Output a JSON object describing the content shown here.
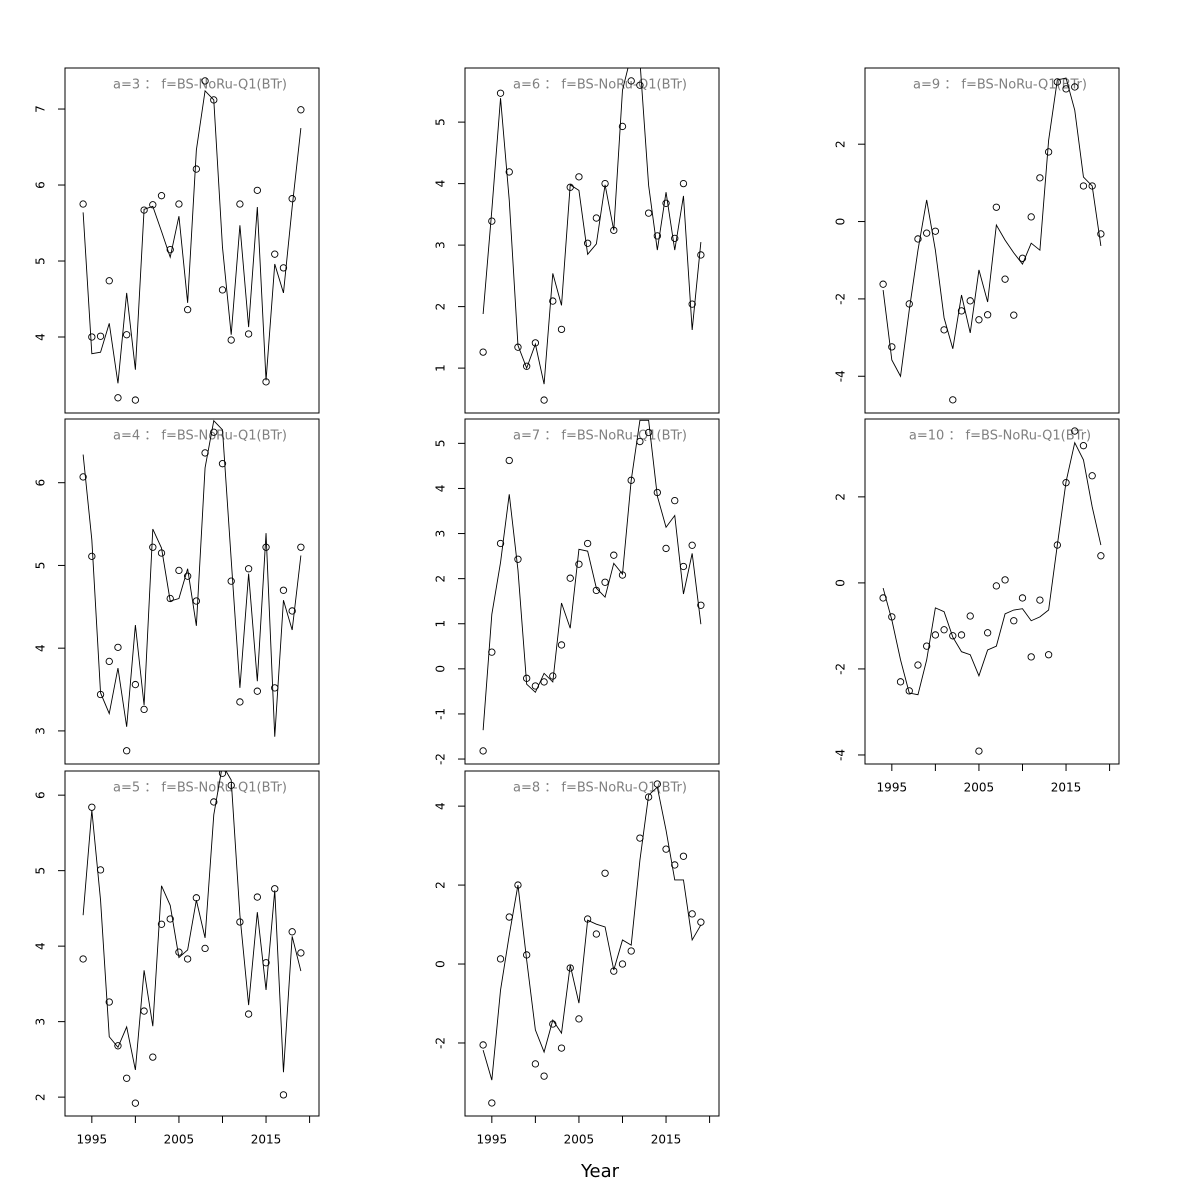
{
  "xlabel": "Year",
  "chart_data": [
    {
      "type": "line",
      "title": "a=3 ： f=BS-NoRu-Q1(BTr)",
      "x": [
        1994,
        1995,
        1996,
        1997,
        1998,
        1999,
        2000,
        2001,
        2002,
        2003,
        2004,
        2005,
        2006,
        2007,
        2008,
        2009,
        2010,
        2011,
        2012,
        2013,
        2014,
        2015,
        2016,
        2017,
        2018,
        2019
      ],
      "xlim": [
        1991.92,
        2021.08
      ],
      "ylim": [
        3.0,
        7.54
      ],
      "yticks": [
        4,
        5,
        6,
        7
      ],
      "series": [
        {
          "mark": "points",
          "color": "#000000",
          "values": [
            5.75,
            4.0,
            4.01,
            4.74,
            3.2,
            4.03,
            3.17,
            5.67,
            5.74,
            5.86,
            5.15,
            5.75,
            4.36,
            6.21,
            7.37,
            7.12,
            4.62,
            3.96,
            5.75,
            4.04,
            5.93,
            3.41,
            5.09,
            4.91,
            5.82,
            6.99
          ]
        },
        {
          "mark": "line",
          "color": "#000000",
          "values": [
            5.64,
            3.78,
            3.8,
            4.18,
            3.39,
            4.58,
            3.57,
            5.68,
            5.72,
            5.39,
            5.05,
            5.59,
            4.45,
            6.46,
            7.24,
            7.12,
            5.18,
            4.03,
            5.47,
            4.13,
            5.71,
            3.43,
            4.96,
            4.58,
            5.71,
            6.75
          ]
        }
      ]
    },
    {
      "type": "line",
      "title": "a=4 ： f=BS-NoRu-Q1(BTr)",
      "x": [
        1994,
        1995,
        1996,
        1997,
        1998,
        1999,
        2000,
        2001,
        2002,
        2003,
        2004,
        2005,
        2006,
        2007,
        2008,
        2009,
        2010,
        2011,
        2012,
        2013,
        2014,
        2015,
        2016,
        2017,
        2018,
        2019
      ],
      "xlim": [
        1991.92,
        2021.08
      ],
      "ylim": [
        2.6,
        6.77
      ],
      "yticks": [
        3,
        4,
        5,
        6
      ],
      "series": [
        {
          "mark": "points",
          "color": "#000000",
          "values": [
            6.07,
            5.11,
            3.44,
            3.84,
            4.01,
            2.76,
            3.56,
            3.26,
            5.22,
            5.15,
            4.6,
            4.94,
            4.87,
            4.57,
            6.36,
            6.61,
            6.23,
            4.81,
            3.35,
            4.96,
            3.48,
            5.22,
            3.52,
            4.7,
            4.45,
            5.22
          ]
        },
        {
          "mark": "line",
          "color": "#000000",
          "values": [
            6.34,
            5.31,
            3.46,
            3.21,
            3.76,
            3.05,
            4.28,
            3.31,
            5.44,
            5.21,
            4.57,
            4.6,
            4.96,
            4.27,
            6.18,
            6.75,
            6.64,
            5.07,
            3.52,
            4.9,
            3.6,
            5.39,
            2.93,
            4.58,
            4.22,
            5.12
          ]
        }
      ]
    },
    {
      "type": "line",
      "title": "a=5 ： f=BS-NoRu-Q1(BTr)",
      "x": [
        1994,
        1995,
        1996,
        1997,
        1998,
        1999,
        2000,
        2001,
        2002,
        2003,
        2004,
        2005,
        2006,
        2007,
        2008,
        2009,
        2010,
        2011,
        2012,
        2013,
        2014,
        2015,
        2016,
        2017,
        2018,
        2019
      ],
      "xlim": [
        1991.92,
        2021.08
      ],
      "xticks": [
        1995,
        {
          "value": 2000,
          "label": null
        },
        2005,
        {
          "value": 2010,
          "label": null
        },
        2015,
        {
          "value": 2020,
          "label": null
        }
      ],
      "ylim": [
        1.75,
        6.32
      ],
      "yticks": [
        2,
        3,
        4,
        5,
        6
      ],
      "series": [
        {
          "mark": "points",
          "color": "#000000",
          "values": [
            3.83,
            5.84,
            5.01,
            3.26,
            2.68,
            2.25,
            1.92,
            3.14,
            2.53,
            4.29,
            4.36,
            3.92,
            3.83,
            4.64,
            3.97,
            5.91,
            6.29,
            6.13,
            4.32,
            3.1,
            4.65,
            3.78,
            4.76,
            2.03,
            4.19,
            3.91
          ]
        },
        {
          "mark": "line",
          "color": "#000000",
          "values": [
            4.41,
            5.8,
            4.61,
            2.8,
            2.66,
            2.93,
            2.36,
            3.68,
            2.94,
            4.8,
            4.54,
            3.85,
            3.95,
            4.61,
            4.11,
            5.74,
            6.4,
            6.2,
            4.41,
            3.22,
            4.45,
            3.42,
            4.74,
            2.33,
            4.13,
            3.67
          ]
        }
      ]
    },
    {
      "type": "line",
      "title": "a=6 ： f=BS-NoRu-Q1(BTr)",
      "x": [
        1994,
        1995,
        1996,
        1997,
        1998,
        1999,
        2000,
        2001,
        2002,
        2003,
        2004,
        2005,
        2006,
        2007,
        2008,
        2009,
        2010,
        2011,
        2012,
        2013,
        2014,
        2015,
        2016,
        2017,
        2018,
        2019
      ],
      "xlim": [
        1991.92,
        2021.08
      ],
      "ylim": [
        0.27,
        5.88
      ],
      "yticks": [
        1,
        2,
        3,
        4,
        5
      ],
      "series": [
        {
          "mark": "points",
          "color": "#000000",
          "values": [
            1.26,
            3.39,
            5.47,
            4.19,
            1.34,
            1.03,
            1.41,
            0.48,
            2.09,
            1.63,
            3.94,
            4.11,
            3.03,
            3.44,
            4.0,
            3.24,
            4.93,
            5.67,
            5.6,
            3.52,
            3.15,
            3.68,
            3.11,
            4.0,
            2.04,
            2.84
          ]
        },
        {
          "mark": "line",
          "color": "#000000",
          "values": [
            1.88,
            3.57,
            5.39,
            3.73,
            1.37,
            1.0,
            1.39,
            0.74,
            2.54,
            2.02,
            3.98,
            3.89,
            2.85,
            3.02,
            3.98,
            3.24,
            5.52,
            6.09,
            6.0,
            3.97,
            2.92,
            3.86,
            2.92,
            3.8,
            1.62,
            3.05
          ]
        }
      ]
    },
    {
      "type": "line",
      "title": "a=7 ： f=BS-NoRu-Q1(BTr)",
      "x": [
        1994,
        1995,
        1996,
        1997,
        1998,
        1999,
        2000,
        2001,
        2002,
        2003,
        2004,
        2005,
        2006,
        2007,
        2008,
        2009,
        2010,
        2011,
        2012,
        2013,
        2014,
        2015,
        2016,
        2017,
        2018,
        2019
      ],
      "xlim": [
        1991.92,
        2021.08
      ],
      "ylim": [
        -2.11,
        5.54
      ],
      "yticks": [
        -2,
        -1,
        0,
        1,
        2,
        3,
        4,
        5
      ],
      "series": [
        {
          "mark": "points",
          "color": "#000000",
          "values": [
            -1.82,
            0.37,
            2.78,
            4.62,
            2.43,
            -0.21,
            -0.38,
            -0.29,
            -0.16,
            0.53,
            2.01,
            2.32,
            2.78,
            1.74,
            1.92,
            2.52,
            2.08,
            4.18,
            5.04,
            5.24,
            3.91,
            2.67,
            3.73,
            2.27,
            2.74,
            1.41
          ]
        },
        {
          "mark": "line",
          "color": "#000000",
          "values": [
            -1.36,
            1.21,
            2.36,
            3.87,
            2.19,
            -0.34,
            -0.52,
            -0.1,
            -0.29,
            1.46,
            0.9,
            2.65,
            2.61,
            1.79,
            1.59,
            2.34,
            2.1,
            4.18,
            5.51,
            5.51,
            3.83,
            3.14,
            3.4,
            1.66,
            2.56,
            0.99
          ]
        }
      ]
    },
    {
      "type": "line",
      "title": "a=8 ： f=BS-NoRu-Q1(BTr)",
      "x": [
        1994,
        1995,
        1996,
        1997,
        1998,
        1999,
        2000,
        2001,
        2002,
        2003,
        2004,
        2005,
        2006,
        2007,
        2008,
        2009,
        2010,
        2011,
        2012,
        2013,
        2014,
        2015,
        2016,
        2017,
        2018,
        2019
      ],
      "xlim": [
        1991.92,
        2021.08
      ],
      "xticks": [
        1995,
        {
          "value": 2000,
          "label": null
        },
        2005,
        {
          "value": 2010,
          "label": null
        },
        2015,
        {
          "value": 2020,
          "label": null
        }
      ],
      "ylim": [
        -3.85,
        4.89
      ],
      "yticks": [
        -2,
        0,
        2,
        4
      ],
      "series": [
        {
          "mark": "points",
          "color": "#000000",
          "values": [
            -2.05,
            -3.52,
            0.13,
            1.19,
            2.0,
            0.23,
            -2.53,
            -2.84,
            -1.52,
            -2.13,
            -0.1,
            -1.39,
            1.14,
            0.76,
            2.3,
            -0.18,
            0.0,
            0.33,
            3.19,
            4.23,
            4.56,
            2.91,
            2.51,
            2.73,
            1.27,
            1.06
          ]
        },
        {
          "mark": "line",
          "color": "#000000",
          "values": [
            -2.18,
            -2.94,
            -0.66,
            0.73,
            2.0,
            0.1,
            -1.67,
            -2.23,
            -1.42,
            -1.75,
            -0.03,
            -0.99,
            1.11,
            1.01,
            0.94,
            -0.15,
            0.61,
            0.48,
            2.63,
            4.28,
            4.48,
            3.39,
            2.13,
            2.13,
            0.61,
            0.99
          ]
        }
      ]
    },
    {
      "type": "line",
      "title": "a=9 ： f=BS-NoRu-Q1(BTr)",
      "x": [
        1994,
        1995,
        1996,
        1997,
        1998,
        1999,
        2000,
        2001,
        2002,
        2003,
        2004,
        2005,
        2006,
        2007,
        2008,
        2009,
        2010,
        2011,
        2012,
        2013,
        2014,
        2015,
        2016,
        2017,
        2018,
        2019
      ],
      "xlim": [
        1991.92,
        2021.08
      ],
      "ylim": [
        -4.95,
        3.97
      ],
      "yticks": [
        -4,
        -2,
        0,
        2
      ],
      "series": [
        {
          "mark": "points",
          "color": "#000000",
          "values": [
            -1.62,
            -3.24,
            null,
            -2.13,
            -0.45,
            -0.3,
            -0.25,
            -2.8,
            -4.61,
            -2.31,
            -2.05,
            -2.54,
            -2.41,
            0.37,
            -1.49,
            -2.42,
            -0.95,
            0.12,
            1.13,
            1.8,
            3.61,
            3.43,
            3.48,
            0.92,
            0.92,
            -0.32
          ]
        },
        {
          "mark": "line",
          "color": "#000000",
          "values": [
            -1.77,
            -3.58,
            -4.0,
            -2.29,
            -0.74,
            0.56,
            -0.74,
            -2.49,
            -3.29,
            -1.9,
            -2.88,
            -1.25,
            -2.08,
            -0.09,
            -0.48,
            -0.81,
            -1.1,
            -0.56,
            -0.74,
            2.1,
            3.66,
            3.71,
            2.88,
            1.15,
            0.92,
            -0.63
          ]
        }
      ]
    },
    {
      "type": "line",
      "title": "a=10 ： f=BS-NoRu-Q1(BTr)",
      "x": [
        1994,
        1995,
        1996,
        1997,
        1998,
        1999,
        2000,
        2001,
        2002,
        2003,
        2004,
        2005,
        2006,
        2007,
        2008,
        2009,
        2010,
        2011,
        2012,
        2013,
        2014,
        2015,
        2016,
        2017,
        2018,
        2019
      ],
      "xlim": [
        1991.92,
        2021.08
      ],
      "xticks": [
        1995,
        {
          "value": 2000,
          "label": null
        },
        2005,
        {
          "value": 2010,
          "label": null
        },
        2015,
        {
          "value": 2020,
          "label": null
        }
      ],
      "ylim": [
        -4.21,
        3.81
      ],
      "yticks": [
        -4,
        -2,
        0,
        2
      ],
      "series": [
        {
          "mark": "points",
          "color": "#000000",
          "values": [
            -0.35,
            -0.79,
            -2.3,
            -2.51,
            -1.91,
            -1.47,
            -1.21,
            -1.09,
            -1.23,
            -1.21,
            -0.77,
            -3.91,
            -1.16,
            -0.07,
            0.07,
            -0.88,
            -0.35,
            -1.72,
            -0.4,
            -1.67,
            0.88,
            2.33,
            3.53,
            3.19,
            2.49,
            0.63
          ]
        },
        {
          "mark": "line",
          "color": "#000000",
          "values": [
            -0.12,
            -0.86,
            -1.79,
            -2.56,
            -2.6,
            -1.79,
            -0.58,
            -0.67,
            -1.26,
            -1.6,
            -1.67,
            -2.16,
            -1.56,
            -1.47,
            -0.72,
            -0.63,
            -0.6,
            -0.88,
            -0.79,
            -0.63,
            0.88,
            2.35,
            3.26,
            2.86,
            1.77,
            0.88
          ]
        }
      ]
    }
  ]
}
